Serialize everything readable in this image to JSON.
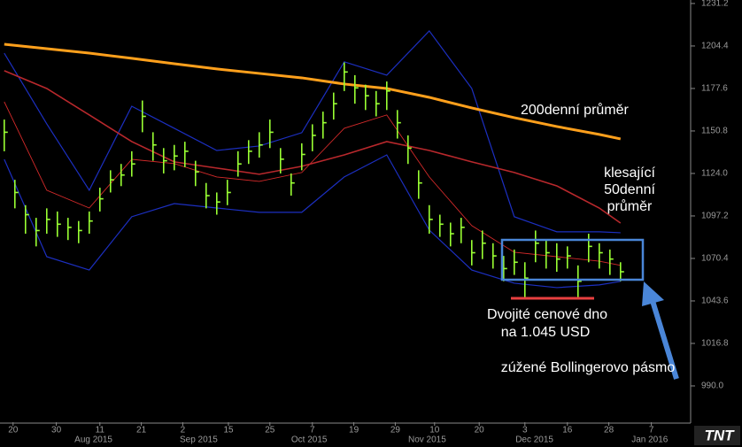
{
  "chart_data": {
    "type": "ohlc",
    "ylim": [
      967.1,
      1233.4
    ],
    "yticks": [
      {
        "value": 990,
        "label": "990.0"
      },
      1016.8,
      1043.6,
      1070.4,
      1097.2,
      {
        "value": 1124,
        "label": "1124.0"
      },
      1150.8,
      1177.6,
      1204.4,
      1231.2
    ],
    "xlim": [
      -0.4,
      64.6
    ],
    "xticks": [
      {
        "value": 0.83,
        "label": "20"
      },
      {
        "value": 4.9,
        "label": "30"
      },
      {
        "value": 9,
        "label": "11"
      },
      {
        "value": 12.9,
        "label": "21"
      },
      {
        "value": 16.8,
        "label": "2"
      },
      {
        "value": 21.1,
        "label": "15"
      },
      {
        "value": 25,
        "label": "25"
      },
      {
        "value": 29,
        "label": "7"
      },
      {
        "value": 32.9,
        "label": "19"
      },
      {
        "value": 36.8,
        "label": "29"
      },
      {
        "value": 40.5,
        "label": "10"
      },
      {
        "value": 44.7,
        "label": "20"
      },
      {
        "value": 49,
        "label": "3"
      },
      {
        "value": 53,
        "label": "16"
      },
      {
        "value": 56.9,
        "label": "28"
      },
      {
        "value": 60.9,
        "label": "7"
      }
    ],
    "month_ticks": [
      {
        "value": 8.4,
        "label": "Aug 2015"
      },
      {
        "value": 18.3,
        "label": "Sep 2015"
      },
      {
        "value": 28.7,
        "label": "Oct 2015"
      },
      {
        "value": 39.8,
        "label": "Nov 2015"
      },
      {
        "value": 49.9,
        "label": "Dec 2015"
      },
      {
        "value": 60.75,
        "label": "Jan 2016"
      }
    ],
    "bars": {
      "color": "#99ff33",
      "high": [
        1158,
        1120,
        1104,
        1096,
        1102,
        1100,
        1096,
        1094,
        1100,
        1115,
        1126,
        1130,
        1138,
        1170,
        1150,
        1140,
        1142,
        1144,
        1132,
        1118,
        1112,
        1120,
        1138,
        1145,
        1150,
        1158,
        1140,
        1124,
        1143,
        1155,
        1163,
        1175,
        1194,
        1186,
        1180,
        1176,
        1182,
        1164,
        1148,
        1126,
        1104,
        1098,
        1093,
        1096,
        1082,
        1088,
        1080,
        1072,
        1076,
        1068,
        1088,
        1082,
        1080,
        1078,
        1066,
        1086,
        1080,
        1076,
        1068
      ],
      "low": [
        1138,
        1102,
        1086,
        1078,
        1086,
        1084,
        1082,
        1080,
        1086,
        1100,
        1112,
        1116,
        1122,
        1150,
        1132,
        1124,
        1126,
        1128,
        1116,
        1102,
        1098,
        1104,
        1122,
        1130,
        1134,
        1140,
        1124,
        1110,
        1126,
        1138,
        1146,
        1158,
        1176,
        1168,
        1164,
        1160,
        1164,
        1146,
        1130,
        1108,
        1086,
        1084,
        1078,
        1080,
        1066,
        1070,
        1064,
        1056,
        1060,
        1046,
        1068,
        1064,
        1062,
        1064,
        1046,
        1068,
        1064,
        1060,
        1056
      ],
      "close": [
        1150,
        1112,
        1098,
        1088,
        1095,
        1092,
        1090,
        1088,
        1094,
        1108,
        1120,
        1123,
        1130,
        1160,
        1142,
        1132,
        1135,
        1138,
        1125,
        1110,
        1106,
        1112,
        1130,
        1138,
        1142,
        1150,
        1133,
        1118,
        1136,
        1148,
        1156,
        1168,
        1188,
        1178,
        1173,
        1168,
        1176,
        1156,
        1140,
        1118,
        1095,
        1092,
        1086,
        1090,
        1074,
        1080,
        1072,
        1064,
        1068,
        1058,
        1080,
        1074,
        1070,
        1072,
        1056,
        1078,
        1074,
        1070,
        1062
      ]
    },
    "line_x": [
      0,
      4,
      8,
      12,
      16,
      20,
      24,
      28,
      32,
      36,
      40,
      44,
      48,
      52,
      56,
      58
    ],
    "lines": [
      {
        "color": "#1c2fc0",
        "width": 1.2,
        "values": [
          1199.9,
          1155.3,
          1113.4,
          1166.4,
          1152.5,
          1138.5,
          1141.3,
          1149.7,
          1194.4,
          1186.0,
          1213.9,
          1177.6,
          1096.7,
          1087.2,
          1087.2,
          1086.6
        ]
      },
      {
        "color": "#1c2fc0",
        "width": 1.2,
        "values": [
          1132.9,
          1071.5,
          1063.1,
          1096.7,
          1105.0,
          1102.2,
          1099.5,
          1099.5,
          1121.8,
          1135.7,
          1088.3,
          1063.1,
          1054.8,
          1052.0,
          1053.7,
          1055.9
        ]
      },
      {
        "color": "#d42a2a",
        "width": 0.9,
        "values": [
          1169.2,
          1113.4,
          1102.2,
          1132.9,
          1130.2,
          1121.8,
          1119.0,
          1124.6,
          1152.5,
          1160.9,
          1121.8,
          1091.1,
          1074.3,
          1071.5,
          1068.7,
          1066.0
        ]
      },
      {
        "color": "#b8282c",
        "width": 1.6,
        "values": [
          1188.8,
          1177.6,
          1160.9,
          1144.1,
          1131.3,
          1127.4,
          1123.5,
          1128.5,
          1135.7,
          1144.1,
          1138.5,
          1131.3,
          1124.6,
          1116.2,
          1102.2,
          1092.7
        ]
      },
      {
        "color": "#ffa01c",
        "width": 3,
        "values": [
          1205.5,
          1202.7,
          1199.9,
          1196.6,
          1193.2,
          1189.9,
          1187.1,
          1184.3,
          1180.4,
          1177.6,
          1172.0,
          1165.3,
          1159.2,
          1153.6,
          1148.6,
          1145.8
        ]
      }
    ],
    "annotations": {
      "ma200": "200denní průměr",
      "ma50": [
        "klesající",
        "50denní",
        "průměr"
      ],
      "bottom": [
        "Dvojité cenové dno",
        "na 1.045 USD"
      ],
      "bands": "zúžené Bollingerovo pásmo"
    },
    "logo": "TNT"
  }
}
